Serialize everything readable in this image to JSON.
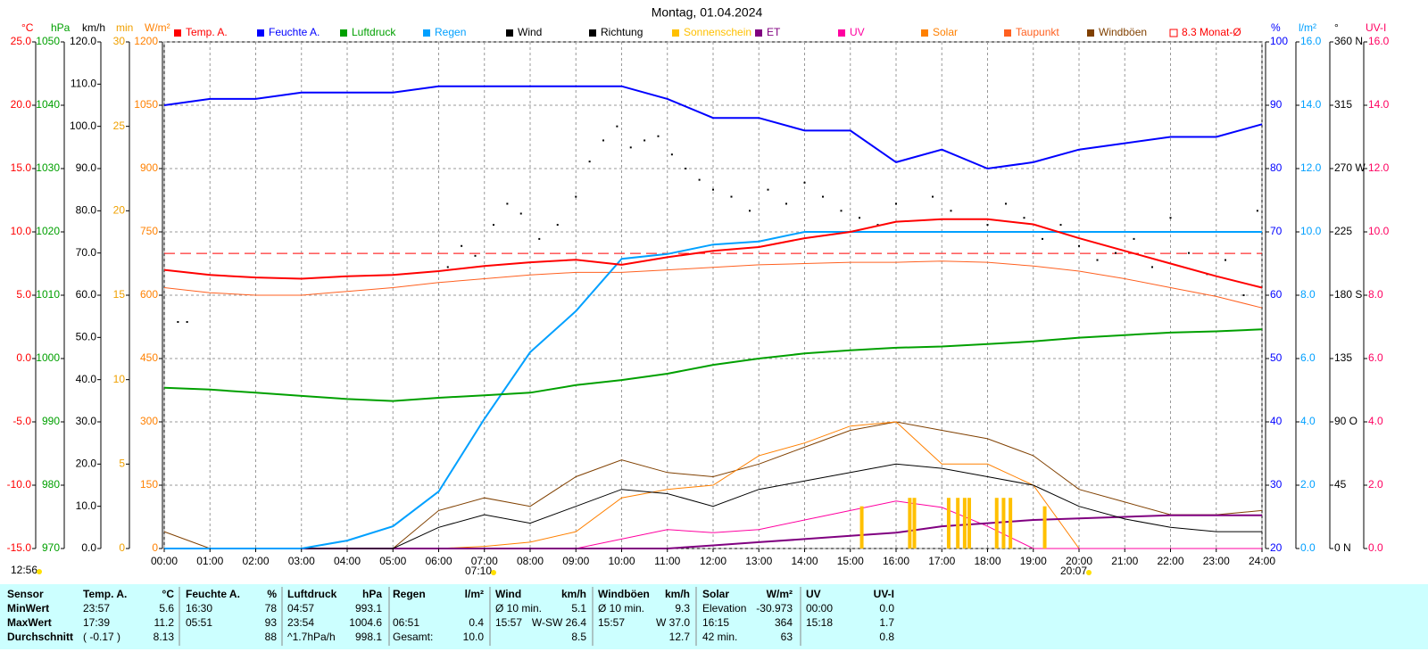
{
  "chart_data": {
    "type": "line",
    "title": "Montag, 01.04.2024",
    "x": [
      0,
      1,
      2,
      3,
      4,
      5,
      6,
      7,
      8,
      9,
      10,
      11,
      12,
      13,
      14,
      15,
      16,
      17,
      18,
      19,
      20,
      21,
      22,
      23,
      24
    ],
    "xlim": [
      0,
      24
    ],
    "xticks": [
      {
        "value": 0,
        "label": "00:00"
      },
      {
        "value": 1,
        "label": "01:00"
      },
      {
        "value": 2,
        "label": "02:00"
      },
      {
        "value": 3,
        "label": "03:00"
      },
      {
        "value": 4,
        "label": "04:00"
      },
      {
        "value": 5,
        "label": "05:00"
      },
      {
        "value": 6,
        "label": "06:00"
      },
      {
        "value": 7,
        "label": "07:00"
      },
      {
        "value": 8,
        "label": "08:00"
      },
      {
        "value": 9,
        "label": "09:00"
      },
      {
        "value": 10,
        "label": "10:00"
      },
      {
        "value": 11,
        "label": "11:00"
      },
      {
        "value": 12,
        "label": "12:00"
      },
      {
        "value": 13,
        "label": "13:00"
      },
      {
        "value": 14,
        "label": "14:00"
      },
      {
        "value": 15,
        "label": "15:00"
      },
      {
        "value": 16,
        "label": "16:00"
      },
      {
        "value": 17,
        "label": "17:00"
      },
      {
        "value": 18,
        "label": "18:00"
      },
      {
        "value": 19,
        "label": "19:00"
      },
      {
        "value": 20,
        "label": "20:00"
      },
      {
        "value": 21,
        "label": "21:00"
      },
      {
        "value": 22,
        "label": "22:00"
      },
      {
        "value": 23,
        "label": "23:00"
      },
      {
        "value": 24,
        "label": "24:00"
      }
    ],
    "grid": true,
    "y_axes": [
      {
        "unit": "°C",
        "side": "left",
        "color": "#ff0000",
        "lim": [
          -15,
          25
        ],
        "ticks": [
          {
            "value": 25,
            "label": "25.0"
          },
          {
            "value": 20,
            "label": "20.0"
          },
          {
            "value": 15,
            "label": "15.0"
          },
          {
            "value": 10,
            "label": "10.0"
          },
          {
            "value": 5,
            "label": "5.0"
          },
          {
            "value": 0,
            "label": "0.0"
          },
          {
            "value": -5,
            "label": "-5.0"
          },
          {
            "value": -10,
            "label": "-10.0"
          },
          {
            "value": -15,
            "label": "-15.0"
          }
        ]
      },
      {
        "unit": "hPa",
        "side": "left",
        "color": "#00a000",
        "lim": [
          970,
          1050
        ],
        "ticks": [
          1050,
          1040,
          1030,
          1020,
          1010,
          1000,
          990,
          980,
          970
        ]
      },
      {
        "unit": "km/h",
        "side": "left",
        "color": "#000000",
        "lim": [
          0,
          120
        ],
        "ticks": [
          {
            "value": 120,
            "label": "120.0"
          },
          {
            "value": 110,
            "label": "110.0"
          },
          {
            "value": 100,
            "label": "100.0"
          },
          {
            "value": 90,
            "label": "90.0"
          },
          {
            "value": 80,
            "label": "80.0"
          },
          {
            "value": 70,
            "label": "70.0"
          },
          {
            "value": 60,
            "label": "60.0"
          },
          {
            "value": 50,
            "label": "50.0"
          },
          {
            "value": 40,
            "label": "40.0"
          },
          {
            "value": 30,
            "label": "30.0"
          },
          {
            "value": 20,
            "label": "20.0"
          },
          {
            "value": 10,
            "label": "10.0"
          },
          {
            "value": 0,
            "label": "0.0"
          }
        ]
      },
      {
        "unit": "min",
        "side": "left",
        "color": "#f0a000",
        "lim": [
          0,
          30
        ],
        "ticks": [
          30,
          25,
          20,
          15,
          10,
          5,
          0
        ]
      },
      {
        "unit": "W/m²",
        "side": "left",
        "color": "#ff8000",
        "lim": [
          0,
          1200
        ],
        "ticks": [
          1200,
          1050,
          900,
          750,
          600,
          450,
          300,
          150,
          0
        ]
      },
      {
        "unit": "%",
        "side": "right",
        "color": "#0000ff",
        "lim": [
          20,
          100
        ],
        "ticks": [
          100,
          90,
          80,
          70,
          60,
          50,
          40,
          30,
          20
        ]
      },
      {
        "unit": "l/m²",
        "side": "right",
        "color": "#00a0ff",
        "lim": [
          0,
          16
        ],
        "ticks": [
          {
            "value": 16,
            "label": "16.0"
          },
          {
            "value": 14,
            "label": "14.0"
          },
          {
            "value": 12,
            "label": "12.0"
          },
          {
            "value": 10,
            "label": "10.0"
          },
          {
            "value": 8,
            "label": "8.0"
          },
          {
            "value": 6,
            "label": "6.0"
          },
          {
            "value": 4,
            "label": "4.0"
          },
          {
            "value": 2,
            "label": "2.0"
          },
          {
            "value": 0,
            "label": "0.0"
          }
        ]
      },
      {
        "unit": "°",
        "side": "right",
        "color": "#000000",
        "lim": [
          0,
          360
        ],
        "ticks": [
          {
            "value": 360,
            "label": "360 N"
          },
          315,
          {
            "value": 270,
            "label": "270 W"
          },
          225,
          {
            "value": 180,
            "label": "180 S"
          },
          135,
          {
            "value": 90,
            "label": "90 O"
          },
          45,
          {
            "value": 0,
            "label": "0 N"
          }
        ]
      },
      {
        "unit": "UV-I",
        "side": "right",
        "color": "#ff0060",
        "lim": [
          0,
          16
        ],
        "ticks": [
          {
            "value": 16,
            "label": "16.0"
          },
          {
            "value": 14,
            "label": "14.0"
          },
          {
            "value": 12,
            "label": "12.0"
          },
          {
            "value": 10,
            "label": "10.0"
          },
          {
            "value": 8,
            "label": "8.0"
          },
          {
            "value": 6,
            "label": "6.0"
          },
          {
            "value": 4,
            "label": "4.0"
          },
          {
            "value": 2,
            "label": "2.0"
          },
          {
            "value": 0,
            "label": "0.0"
          }
        ]
      }
    ],
    "series": [
      {
        "name": "Temp. A.",
        "axis": "°C",
        "kind": "line",
        "color": "#ff0000",
        "values": [
          7.0,
          6.6,
          6.4,
          6.3,
          6.5,
          6.6,
          6.9,
          7.3,
          7.6,
          7.8,
          7.4,
          8.0,
          8.5,
          8.8,
          9.5,
          10.0,
          10.8,
          11.0,
          11.0,
          10.6,
          9.5,
          8.5,
          7.5,
          6.5,
          5.6
        ]
      },
      {
        "name": "Feuchte A.",
        "axis": "%",
        "kind": "line",
        "color": "#0000ff",
        "values": [
          90,
          91,
          91,
          92,
          92,
          92,
          93,
          93,
          93,
          93,
          93,
          91,
          88,
          88,
          86,
          86,
          81,
          83,
          80,
          81,
          83,
          84,
          85,
          85,
          87
        ]
      },
      {
        "name": "Luftdruck",
        "axis": "hPa",
        "kind": "line",
        "color": "#00a000",
        "values": [
          995.4,
          995.1,
          994.6,
          994.1,
          993.6,
          993.3,
          993.8,
          994.2,
          994.6,
          995.8,
          996.6,
          997.6,
          999.0,
          1000.0,
          1000.8,
          1001.3,
          1001.7,
          1001.9,
          1002.3,
          1002.7,
          1003.3,
          1003.7,
          1004.1,
          1004.3,
          1004.6
        ]
      },
      {
        "name": "Regen",
        "axis": "l/m²",
        "kind": "line",
        "color": "#00a0ff",
        "values": [
          0,
          0,
          0,
          0,
          0.25,
          0.7,
          1.8,
          4.1,
          6.2,
          7.5,
          9.15,
          9.3,
          9.6,
          9.7,
          10.0,
          10.0,
          10.0,
          10.0,
          10.0,
          10.0,
          10.0,
          10.0,
          10.0,
          10.0,
          10.0
        ]
      },
      {
        "name": "Wind",
        "axis": "km/h",
        "kind": "line",
        "color": "#000000",
        "values": [
          0,
          0,
          0,
          0,
          0,
          0,
          5,
          8,
          6,
          10,
          14,
          13,
          10,
          14,
          16,
          18,
          20,
          19,
          17,
          15,
          10,
          7,
          5,
          4,
          4
        ]
      },
      {
        "name": "Richtung",
        "axis": "°",
        "kind": "scatter",
        "color": "#000000",
        "x": [
          0.3,
          0.5,
          6.2,
          6.5,
          6.8,
          7.2,
          7.5,
          7.8,
          8.2,
          8.6,
          9.0,
          9.3,
          9.6,
          9.9,
          10.2,
          10.5,
          10.8,
          11.1,
          11.4,
          11.7,
          12.0,
          12.4,
          12.8,
          13.2,
          13.6,
          14.0,
          14.4,
          14.8,
          15.2,
          15.6,
          16.0,
          16.4,
          16.8,
          17.2,
          17.6,
          18.0,
          18.4,
          18.8,
          19.2,
          19.6,
          20.0,
          20.4,
          20.8,
          21.2,
          21.6,
          22.0,
          22.4,
          22.8,
          23.2,
          23.6,
          23.9
        ],
        "values": [
          161,
          161,
          200,
          215,
          208,
          230,
          245,
          238,
          220,
          230,
          250,
          275,
          290,
          300,
          285,
          290,
          293,
          280,
          270,
          262,
          255,
          250,
          240,
          255,
          245,
          260,
          250,
          240,
          235,
          230,
          245,
          225,
          250,
          240,
          225,
          230,
          245,
          235,
          220,
          230,
          215,
          205,
          210,
          220,
          200,
          235,
          210,
          195,
          205,
          180,
          240
        ]
      },
      {
        "name": "Sonnenschein",
        "axis": "min",
        "kind": "bar",
        "color": "#ffc000",
        "x": [
          15.25,
          16.3,
          16.4,
          17.15,
          17.35,
          17.5,
          17.6,
          18.2,
          18.35,
          18.5,
          19.25
        ],
        "values": [
          2.5,
          3,
          3,
          3,
          3,
          3,
          3,
          3,
          3,
          3,
          2.5
        ]
      },
      {
        "name": "ET",
        "axis": "l/m²",
        "kind": "line",
        "color": "#800080",
        "values": [
          0,
          0,
          0,
          0,
          0,
          0,
          0,
          0,
          0,
          0,
          0,
          0,
          0.1,
          0.2,
          0.3,
          0.4,
          0.5,
          0.7,
          0.8,
          0.9,
          0.95,
          1.0,
          1.05,
          1.05,
          1.05
        ]
      },
      {
        "name": "UV",
        "axis": "UV-I",
        "kind": "line",
        "color": "#ff00a0",
        "values": [
          0,
          0,
          0,
          0,
          0,
          0,
          0,
          0,
          0,
          0,
          0.3,
          0.6,
          0.5,
          0.6,
          0.9,
          1.2,
          1.5,
          1.3,
          0.7,
          0,
          0,
          0,
          0,
          0,
          0
        ]
      },
      {
        "name": "Solar",
        "axis": "W/m²",
        "kind": "line",
        "color": "#ff8000",
        "values": [
          0,
          0,
          0,
          0,
          0,
          0,
          0,
          5,
          15,
          40,
          120,
          140,
          150,
          220,
          250,
          290,
          300,
          200,
          200,
          150,
          0,
          0,
          0,
          0,
          0
        ]
      },
      {
        "name": "Taupunkt",
        "axis": "°C",
        "kind": "line",
        "color": "#ff6020",
        "values": [
          5.6,
          5.2,
          5.0,
          5.0,
          5.3,
          5.6,
          6.0,
          6.3,
          6.6,
          6.8,
          6.8,
          7.0,
          7.2,
          7.4,
          7.5,
          7.6,
          7.6,
          7.7,
          7.6,
          7.3,
          6.9,
          6.3,
          5.6,
          4.9,
          4.0
        ]
      },
      {
        "name": "Windböen",
        "axis": "km/h",
        "kind": "line",
        "color": "#804000",
        "values": [
          4,
          0,
          0,
          0,
          0,
          0,
          9,
          12,
          10,
          17,
          21,
          18,
          17,
          20,
          24,
          28,
          30,
          28,
          26,
          22,
          14,
          11,
          8,
          8,
          9
        ]
      },
      {
        "name": "8.3 Monat-Ø",
        "axis": "°C",
        "kind": "line",
        "dash": true,
        "color": "#ff0000",
        "x": [
          0,
          24
        ],
        "values": [
          8.3,
          8.3
        ]
      }
    ],
    "annotations": [
      "12:56",
      "07:10",
      "20:07"
    ]
  },
  "table": {
    "header": [
      "Sensor",
      "Temp. A.",
      "°C",
      "Feuchte A.",
      "%",
      "Luftdruck",
      "hPa",
      "Regen",
      "l/m²",
      "Wind",
      "km/h",
      "Windböen",
      "km/h",
      "Solar",
      "W/m²",
      "UV",
      "UV-I"
    ],
    "rows": [
      [
        "MinWert",
        "23:57",
        "5.6",
        "16:30",
        "78",
        "04:57",
        "993.1",
        null,
        null,
        "Ø 10 min.",
        "5.1",
        "Ø 10 min.",
        "9.3",
        "Elevation",
        "-30.973",
        "00:00",
        "0.0"
      ],
      [
        "MaxWert",
        "17:39",
        "11.2",
        "05:51",
        "93",
        "23:54",
        "1004.6",
        "06:51",
        "0.4",
        "15:57",
        "W-SW 26.4",
        "15:57",
        "W 37.0",
        "16:15",
        "364",
        "15:18",
        "1.7"
      ],
      [
        "Durchschnitt",
        "( -0.17 )",
        "8.13",
        null,
        "88",
        "^1.7hPa/h",
        "998.1",
        "Gesamt:",
        "10.0",
        null,
        "8.5",
        null,
        "12.7",
        "42 min.",
        "63",
        null,
        "0.8"
      ]
    ]
  }
}
